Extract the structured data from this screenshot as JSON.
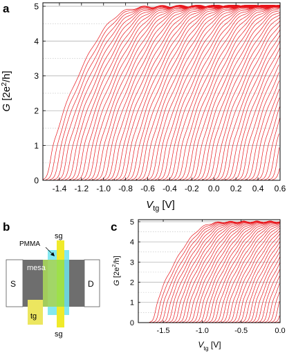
{
  "panels": {
    "a": {
      "label": "a"
    },
    "b": {
      "label": "b",
      "pmma": "PMMA",
      "sg_top": "sg",
      "sg_bottom": "sg",
      "mesa": "mesa",
      "source": "S",
      "drain": "D",
      "tg": "tg"
    },
    "c": {
      "label": "c"
    }
  },
  "colors": {
    "trace": "#e8151b",
    "axis": "#000000",
    "grid_solid": "#b5b5b5",
    "grid_dotted": "#c8c8c8",
    "mesa": "#6e6e6e",
    "pmma": "#6fe4ee",
    "sg_gate": "#f0ea2a",
    "tg_gate": "#ece65f",
    "contact": "#ffffff"
  },
  "chart_data": [
    {
      "type": "line",
      "panel": "a",
      "title": "",
      "xlabel": "V_tg [V]",
      "ylabel": "G [2e²/h]",
      "x_ticks": [
        "-1.4",
        "-1.2",
        "-1.0",
        "-0.8",
        "-0.6",
        "-0.4",
        "-0.2",
        "0.0",
        "0.2",
        "0.4",
        "0.6"
      ],
      "y_ticks": [
        "0",
        "1",
        "2",
        "3",
        "4",
        "5"
      ],
      "xlim": [
        -1.55,
        0.6
      ],
      "ylim": [
        0,
        5.1
      ],
      "plateaus": [
        1,
        2,
        3,
        4,
        5
      ],
      "half_plateaus": [
        0.5,
        1.5,
        2.5,
        3.5,
        4.5
      ],
      "n_traces": 60,
      "pinchoff_first": -1.5,
      "pinchoff_last": -1.18,
      "trace_spacing": 0.03,
      "grid": true
    },
    {
      "type": "line",
      "panel": "c",
      "title": "",
      "xlabel": "V_tg [V]",
      "ylabel": "G [2e²/h]",
      "x_ticks": [
        "-1.5",
        "-1.0",
        "-0.5",
        "0.0"
      ],
      "y_ticks": [
        "0",
        "1",
        "2",
        "3",
        "4",
        "5"
      ],
      "xlim": [
        -1.82,
        0.0
      ],
      "ylim": [
        0,
        5.1
      ],
      "plateaus": [
        1,
        2,
        3,
        4,
        5
      ],
      "half_plateaus": [
        0.5,
        1.5,
        2.5,
        3.5,
        4.5
      ],
      "n_traces": 45,
      "pinchoff_first": -1.62,
      "pinchoff_last": -1.3,
      "trace_spacing": 0.035,
      "grid": true
    }
  ]
}
